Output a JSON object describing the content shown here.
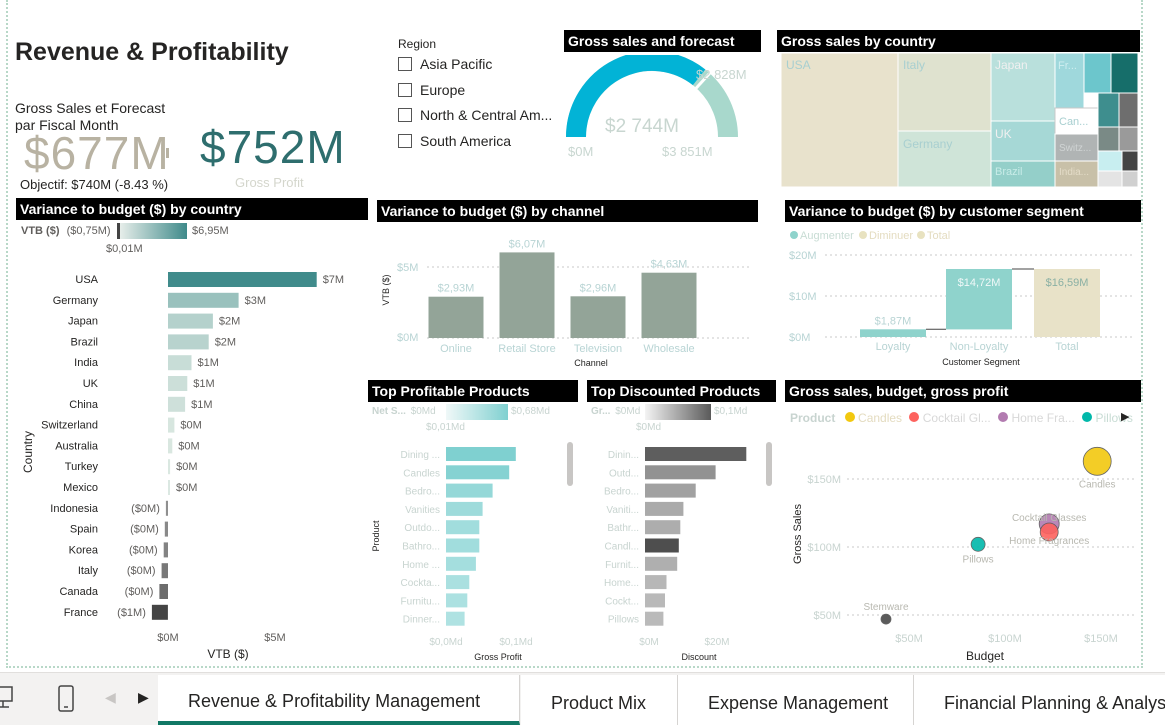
{
  "title": "Revenue & Profitability",
  "kpi": {
    "label_line1": "Gross Sales et Forecast",
    "label_line2": "par Fiscal Month",
    "gross_sales": "$677M",
    "gross_profit": "$752M",
    "gross_profit_label": "Gross Profit",
    "objective": "Objectif: $740M (-8.43 %)"
  },
  "region": {
    "title": "Region",
    "items": [
      "Asia Pacific",
      "Europe",
      "North & Central Am...",
      "South America"
    ]
  },
  "gauge": {
    "title": "Gross sales and forecast",
    "value": "$2 744M",
    "target": "$2 828M",
    "min": "$0M",
    "max": "$3 851M",
    "value_num": 2744,
    "target_num": 2828,
    "max_num": 3851
  },
  "treemap": {
    "title": "Gross sales by country",
    "labels": [
      "USA",
      "Italy",
      "Japan",
      "Fr...",
      "Germany",
      "UK",
      "Can...",
      "Switz...",
      "Brazil",
      "India..."
    ]
  },
  "vtb_country": {
    "title": "Variance to budget ($) by country",
    "legend_label": "VTB ($)",
    "legend_min": "($0,75M)",
    "legend_max": "$6,95M",
    "legend_mid": "$0,01M",
    "ylabel": "Country",
    "xlabel": "VTB ($)",
    "xticks": [
      "$0M",
      "$5M"
    ]
  },
  "vtb_channel": {
    "title": "Variance to budget ($) by channel",
    "ylabel": "VTB ($)",
    "xlabel": "Channel",
    "yticks": [
      "$5M",
      "$0M"
    ]
  },
  "vtb_segment": {
    "title": "Variance to budget ($) by customer segment",
    "legend": [
      "Augmenter",
      "Diminuer",
      "Total"
    ],
    "yticks": [
      "$20M",
      "$10M",
      "$0M"
    ],
    "xlabel": "Customer Segment"
  },
  "top_profitable": {
    "title": "Top Profitable Products",
    "legend_label": "Net S...",
    "legend_min": "$0Md",
    "legend_max": "$0,68Md",
    "legend_mid": "$0,01Md",
    "ylabel": "Product",
    "xlabel": "Gross Profit",
    "xticks": [
      "$0,0Md",
      "$0,1Md"
    ]
  },
  "top_discounted": {
    "title": "Top Discounted Products",
    "legend_label": "Gr...",
    "legend_min": "$0Md",
    "legend_max": "$0,1Md",
    "legend_mid": "$0Md",
    "xlabel": "Discount",
    "xticks": [
      "$0M",
      "$20M"
    ]
  },
  "scatter": {
    "title": "Gross sales, budget, gross profit",
    "legend_label": "Product",
    "legend": [
      "Candles",
      "Cocktail Gl...",
      "Home Fra...",
      "Pillows"
    ],
    "ylabel": "Gross Sales",
    "xlabel": "Budget",
    "yticks": [
      "$150M",
      "$100M",
      "$50M"
    ],
    "xticks": [
      "$50M",
      "$100M",
      "$150M"
    ]
  },
  "chart_data": [
    {
      "type": "bar",
      "title": "Variance to budget ($) by country",
      "categories": [
        "USA",
        "Germany",
        "Japan",
        "Brazil",
        "India",
        "UK",
        "China",
        "Switzerland",
        "Australia",
        "Turkey",
        "Mexico",
        "Indonesia",
        "Spain",
        "Korea",
        "Italy",
        "Canada",
        "France"
      ],
      "values": [
        6.95,
        3.3,
        2.1,
        1.9,
        1.1,
        0.9,
        0.8,
        0.3,
        0.2,
        0.1,
        0.05,
        -0.1,
        -0.15,
        -0.2,
        -0.3,
        -0.4,
        -0.75
      ],
      "labels": [
        "$7M",
        "$3M",
        "$2M",
        "$2M",
        "$1M",
        "$1M",
        "$1M",
        "$0M",
        "$0M",
        "$0M",
        "$0M",
        "($0M)",
        "($0M)",
        "($0M)",
        "($0M)",
        "($0M)",
        "($1M)"
      ],
      "xlabel": "VTB ($)",
      "ylabel": "Country",
      "xlim": [
        -0.75,
        7
      ]
    },
    {
      "type": "bar",
      "title": "Variance to budget ($) by channel",
      "categories": [
        "Online",
        "Retail Store",
        "Television",
        "Wholesale"
      ],
      "values": [
        2.93,
        6.07,
        2.96,
        4.63
      ],
      "labels": [
        "$2,93M",
        "$6,07M",
        "$2,96M",
        "$4,63M"
      ],
      "xlabel": "Channel",
      "ylabel": "VTB ($)",
      "ylim": [
        0,
        7
      ]
    },
    {
      "type": "bar",
      "title": "Variance to budget ($) by customer segment",
      "categories": [
        "Loyalty",
        "Non-Loyalty",
        "Total"
      ],
      "values": [
        1.87,
        14.72,
        16.59
      ],
      "labels": [
        "$1,87M",
        "$14,72M",
        "$16,59M"
      ],
      "kind": "waterfall",
      "xlabel": "Customer Segment",
      "ylim": [
        0,
        20
      ]
    },
    {
      "type": "bar",
      "title": "Top Profitable Products",
      "categories": [
        "Dining ...",
        "Candles",
        "Bedro...",
        "Vanities",
        "Outdo...",
        "Bathro...",
        "Home ...",
        "Cockta...",
        "Furnitu...",
        "Dinner..."
      ],
      "values": [
        0.105,
        0.095,
        0.07,
        0.055,
        0.05,
        0.05,
        0.045,
        0.035,
        0.032,
        0.028
      ],
      "xlabel": "Gross Profit",
      "ylabel": "Product",
      "xlim": [
        0,
        0.12
      ]
    },
    {
      "type": "bar",
      "title": "Top Discounted Products",
      "categories": [
        "Dinin...",
        "Outd...",
        "Bedro...",
        "Vaniti...",
        "Bathr...",
        "Candl...",
        "Furnit...",
        "Home...",
        "Cockt...",
        "Pillows"
      ],
      "values": [
        33,
        23,
        16.5,
        12.5,
        11.5,
        11,
        10.5,
        7,
        6.5,
        6
      ],
      "xlabel": "Discount",
      "xlim": [
        0,
        40
      ]
    },
    {
      "type": "scatter",
      "title": "Gross sales, budget, gross profit",
      "points": [
        {
          "label": "Candles",
          "x": 148,
          "y": 163,
          "size": 14,
          "color": "#f2c80f"
        },
        {
          "label": "Cocktail Glasses",
          "x": 123,
          "y": 117,
          "size": 10,
          "color": "#b27bb0"
        },
        {
          "label": "Home Fragrances",
          "x": 123,
          "y": 111,
          "size": 9,
          "color": "#fd625e"
        },
        {
          "label": "Pillows",
          "x": 86,
          "y": 102,
          "size": 7,
          "color": "#01b8aa"
        },
        {
          "label": "Stemware",
          "x": 38,
          "y": 47,
          "size": 5,
          "color": "#4a4a4a"
        }
      ],
      "xlabel": "Budget",
      "ylabel": "Gross Sales",
      "xlim": [
        25,
        160
      ],
      "ylim": [
        40,
        175
      ]
    }
  ],
  "tabs": [
    "Revenue & Profitability Management",
    "Product Mix",
    "Expense Management",
    "Financial Planning & Analysis"
  ]
}
